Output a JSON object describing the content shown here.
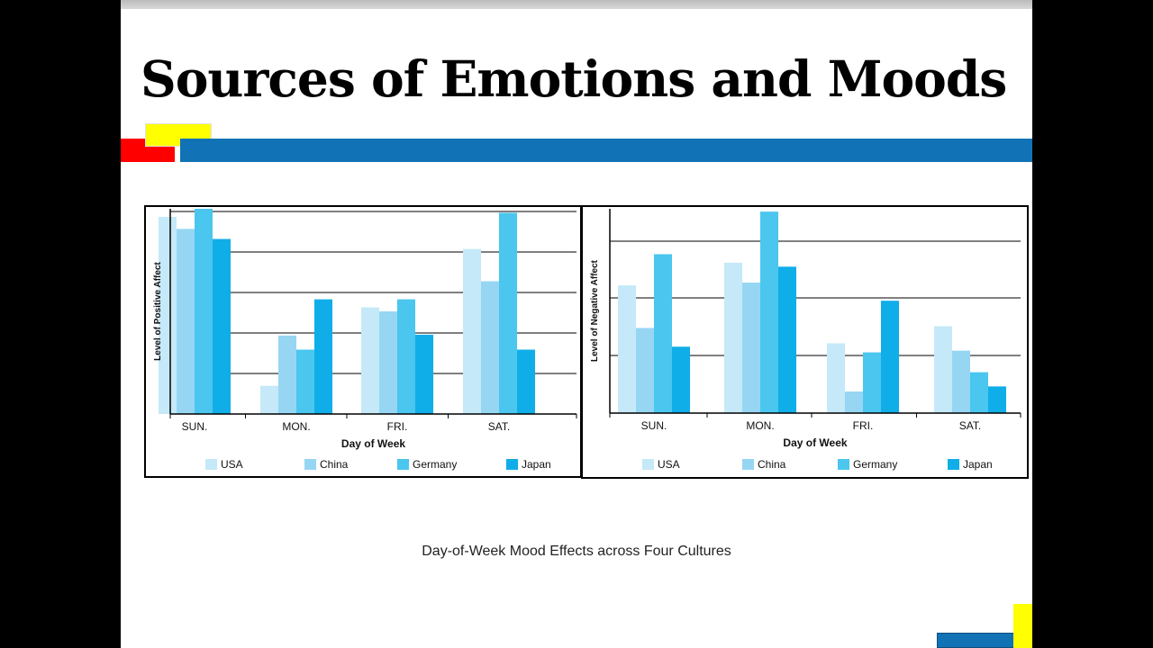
{
  "slide": {
    "title": "Sources of Emotions and Moods",
    "caption": "Day-of-Week Mood  Effects across Four Cultures"
  },
  "colors": {
    "USA": "#c5e9f8",
    "China": "#96d6f3",
    "Germany": "#4ac6ef",
    "Japan": "#10aee8",
    "accent_blue": "#1272b6",
    "accent_red": "#ff0000",
    "accent_yellow": "#ffff00"
  },
  "chart_data": [
    {
      "type": "bar",
      "xlabel": "Day of Week",
      "ylabel": "Level of Positive Affect",
      "categories": [
        "SUN.",
        "MON.",
        "FRI.",
        "SAT."
      ],
      "series": [
        {
          "name": "USA",
          "values": [
            4.9,
            0.7,
            2.65,
            4.1
          ]
        },
        {
          "name": "China",
          "values": [
            4.6,
            1.95,
            2.55,
            3.3
          ]
        },
        {
          "name": "Germany",
          "values": [
            5.1,
            1.6,
            2.85,
            5.0
          ]
        },
        {
          "name": "Japan",
          "values": [
            4.35,
            2.85,
            1.97,
            1.6
          ]
        }
      ],
      "ylim": [
        0,
        5.1
      ],
      "grid": true,
      "legend": "bottom"
    },
    {
      "type": "bar",
      "xlabel": "Day of Week",
      "ylabel": "Level of Negative Affect",
      "categories": [
        "SUN.",
        "MON.",
        "FRI.",
        "SAT."
      ],
      "series": [
        {
          "name": "USA",
          "values": [
            2.25,
            2.65,
            1.23,
            1.53
          ]
        },
        {
          "name": "China",
          "values": [
            1.5,
            2.3,
            0.38,
            1.1
          ]
        },
        {
          "name": "Germany",
          "values": [
            2.8,
            3.55,
            1.07,
            0.72
          ]
        },
        {
          "name": "Japan",
          "values": [
            1.17,
            2.58,
            1.98,
            0.47
          ]
        }
      ],
      "ylim": [
        0,
        3.6
      ],
      "grid": true,
      "legend": "bottom"
    }
  ]
}
